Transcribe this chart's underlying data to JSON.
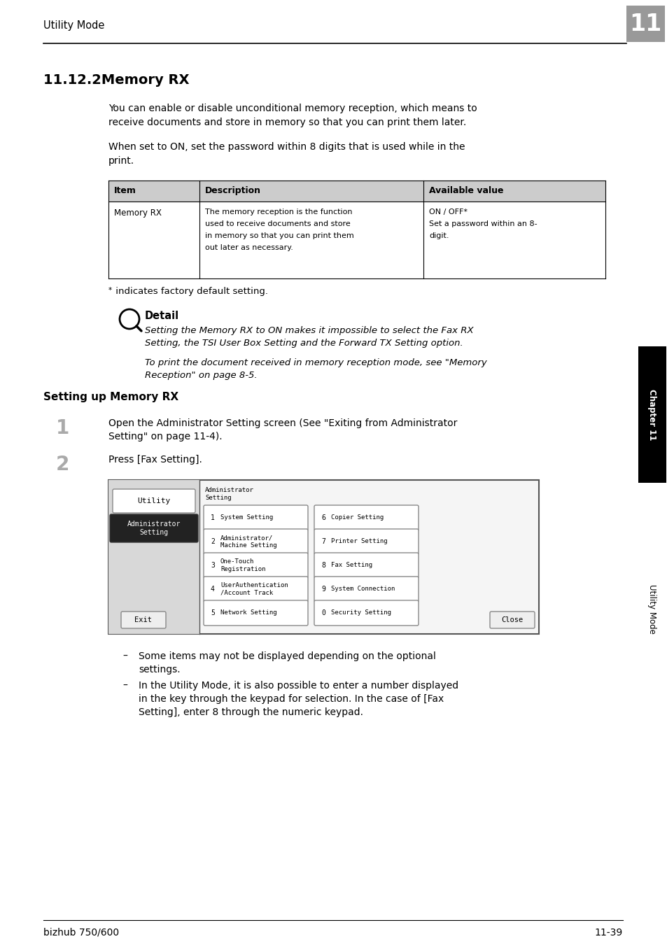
{
  "page_bg": "#ffffff",
  "header_text": "Utility Mode",
  "header_num": "11",
  "section_title": "11.12.2Memory RX",
  "para1_line1": "You can enable or disable unconditional memory reception, which means to",
  "para1_line2": "receive documents and store in memory so that you can print them later.",
  "para2_line1": "When set to ON, set the password within 8 digits that is used while in the",
  "para2_line2": "print.",
  "table_headers": [
    "Item",
    "Description",
    "Available value"
  ],
  "table_row_item": "Memory RX",
  "table_row_desc_lines": [
    "The memory reception is the function",
    "used to receive documents and store",
    "in memory so that you can print them",
    "out later as necessary."
  ],
  "table_row_val_lines": [
    "ON / OFF*",
    "Set a password within an 8-",
    "digit."
  ],
  "footnote_star": "*",
  "footnote_text": " indicates factory default setting.",
  "detail_label": "Detail",
  "detail_italic1_line1": "Setting the Memory RX to ON makes it impossible to select the Fax RX",
  "detail_italic1_line2": "Setting, the TSI User Box Setting and the Forward TX Setting option.",
  "detail_italic2_line1": "To print the document received in memory reception mode, see \"Memory",
  "detail_italic2_line2": "Reception\" on page 8-5.",
  "sub_heading": "Setting up Memory RX",
  "step1_num": "1",
  "step1_line1": "Open the Administrator Setting screen (See \"Exiting from Administrator",
  "step1_line2": "Setting\" on page 11-4).",
  "step2_num": "2",
  "step2_text": "Press [Fax Setting].",
  "scr_left_label1": "Utility",
  "scr_left_label2": "Administrator\nSetting",
  "scr_admin_label": "Administrator\nSetting",
  "scr_buttons": [
    [
      "1",
      "System Setting",
      "6",
      "Copier Setting"
    ],
    [
      "2",
      "Administrator/\nMachine Setting",
      "7",
      "Printer Setting"
    ],
    [
      "3",
      "One-Touch\nRegistration",
      "8",
      "Fax Setting"
    ],
    [
      "4",
      "UserAuthentication\n/Account Track",
      "9",
      "System Connection"
    ],
    [
      "5",
      "Network Setting",
      "0",
      "Security Setting"
    ]
  ],
  "scr_exit": "Exit",
  "scr_close": "Close",
  "bullet1_line1": "Some items may not be displayed depending on the optional",
  "bullet1_line2": "settings.",
  "bullet2_line1": "In the Utility Mode, it is also possible to enter a number displayed",
  "bullet2_line2": "in the key through the keypad for selection. In the case of [Fax",
  "bullet2_line3": "Setting], enter 8 through the numeric keypad.",
  "footer_left": "bizhub 750/600",
  "footer_right": "11-39",
  "side_tab_chapter": "Chapter 11",
  "side_tab_utility": "Utility Mode"
}
